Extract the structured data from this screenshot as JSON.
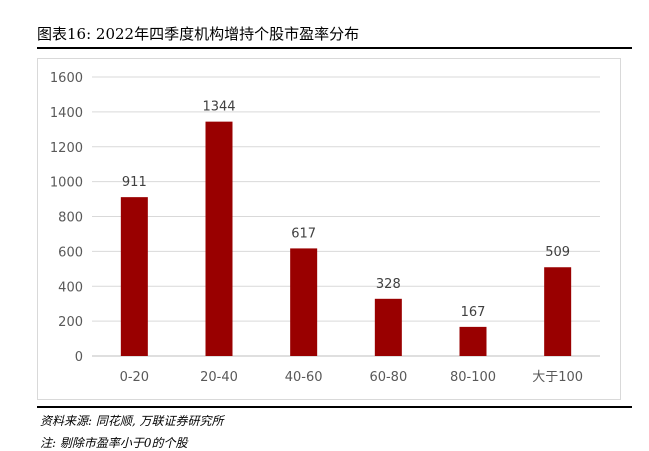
{
  "header": {
    "title": "图表16: 2022年四季度机构增持个股市盈率分布"
  },
  "footer": {
    "source": "资料来源: 同花顺, 万联证券研究所",
    "note": "注: 剔除市盈率小于0的个股"
  },
  "colors": {
    "bar": "#990000",
    "grid": "#d9d9d9",
    "axis": "#bfbfbf"
  },
  "chart_data": {
    "type": "bar",
    "title": "",
    "xlabel": "",
    "ylabel": "",
    "categories": [
      "0-20",
      "20-40",
      "40-60",
      "60-80",
      "80-100",
      "大于100"
    ],
    "values": [
      911,
      1344,
      617,
      328,
      167,
      509
    ],
    "ylim": [
      0,
      1600
    ],
    "yticks": [
      0,
      200,
      400,
      600,
      800,
      1000,
      1200,
      1400,
      1600
    ],
    "grid": true,
    "legend": "none",
    "data_labels": true
  }
}
